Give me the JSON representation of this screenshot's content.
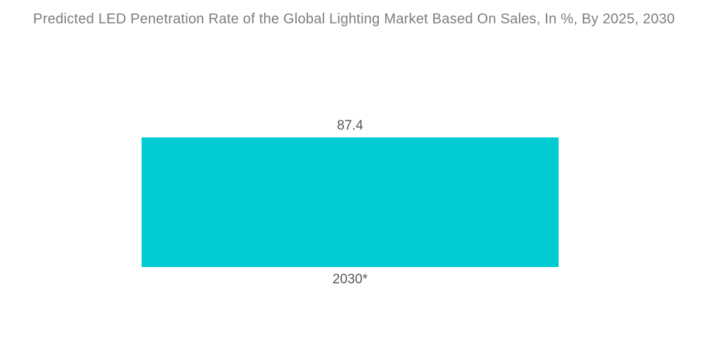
{
  "page": {
    "background_color": "#ffffff"
  },
  "chart_data": {
    "type": "bar",
    "title": "Predicted LED Penetration Rate of the Global Lighting Market Based On Sales, In %, By 2025, 2030",
    "categories": [
      "2030*"
    ],
    "values": [
      87.4
    ],
    "xlabel": "",
    "ylabel": "",
    "ylim": [
      0,
      100
    ],
    "grid": false,
    "legend": "none",
    "axes_visible": false,
    "bar_color": "#00cbd2",
    "title_color": "#7d7d7d",
    "label_color": "#565656"
  }
}
